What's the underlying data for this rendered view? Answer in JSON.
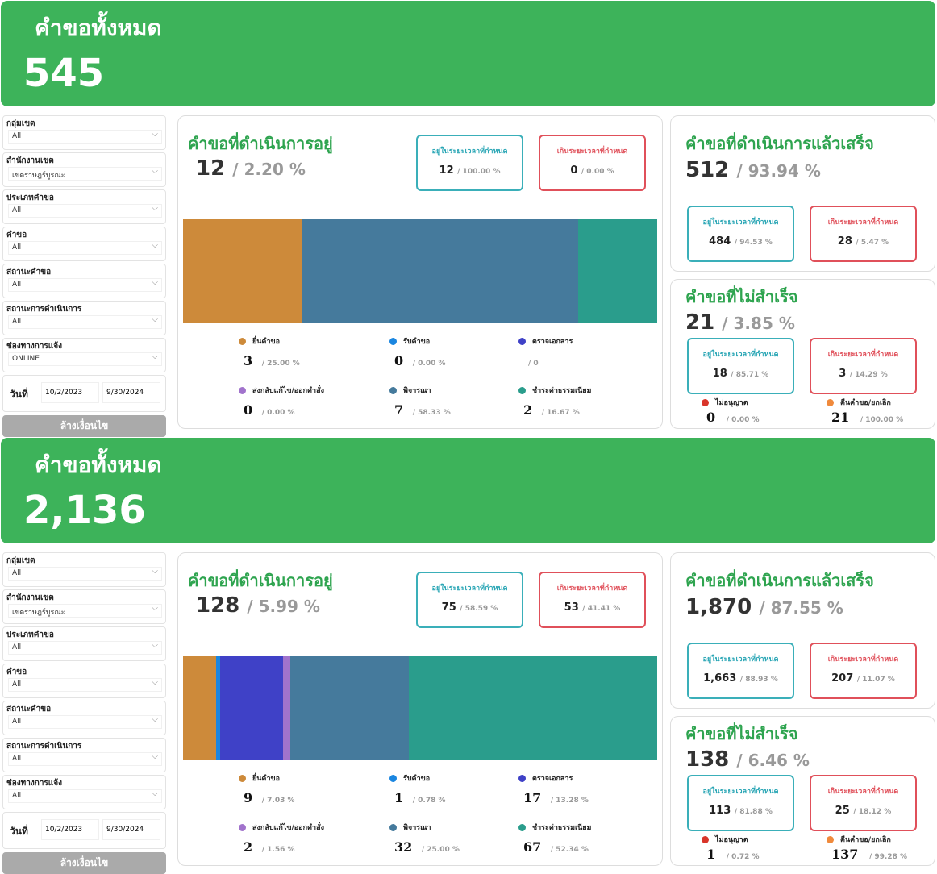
{
  "labels": {
    "header_title": "คำขอทั้งหมด",
    "filter_labels": [
      "กลุ่มเขต",
      "สำนักงานเขต",
      "ประเภทคำขอ",
      "คำขอ",
      "สถานะคำขอ",
      "สถานะการดำเนินการ",
      "ช่องทางการแจ้ง"
    ],
    "date_label": "วันที่",
    "clear_button": "ล้างเงื่อนไข",
    "in_progress_title": "คำขอที่ดำเนินการอยู่",
    "completed_title": "คำขอที่ดำเนินการแล้วเสร็จ",
    "failed_title": "คำขอที่ไม่สำเร็จ",
    "on_time": "อยู่ในระยะเวลาที่กำหนด",
    "overdue": "เกินระยะเวลาที่กำหนด",
    "stages": [
      "ยื่นคำขอ",
      "รับคำขอ",
      "ตรวจเอกสาร",
      "ส่งกลับแก้ไข/ออกคำสั่ง",
      "พิจารณา",
      "ชำระค่าธรรมเนียม"
    ],
    "failed_reasons": [
      "ไม่อนุญาต",
      "คืนคำขอ/ยกเลิก"
    ]
  },
  "colors": {
    "header": "#3db35a",
    "stages": [
      "#cd8a3a",
      "#1a86e0",
      "#3f41c7",
      "#a173cc",
      "#457a9c",
      "#2a9d8c"
    ],
    "failed_reasons": [
      "#d9352a",
      "#f08a3c"
    ]
  },
  "panels": [
    {
      "total": "545",
      "filters": [
        "All",
        "เขตราษฎร์บูรณะ",
        "All",
        "All",
        "All",
        "All",
        "ONLINE"
      ],
      "date_from": "10/2/2023",
      "date_to": "9/30/2024",
      "in_progress": {
        "count": "12",
        "pct": "/ 2.20 %",
        "on_time": "12",
        "on_time_pct": "/ 100.00 %",
        "overdue": "0",
        "overdue_pct": "/ 0.00 %"
      },
      "stages": [
        {
          "v": "3",
          "p": "/ 25.00 %",
          "n": 3
        },
        {
          "v": "0",
          "p": "/ 0.00 %",
          "n": 0
        },
        {
          "v": "",
          "p": "/ 0",
          "n": 0
        },
        {
          "v": "0",
          "p": "/ 0.00 %",
          "n": 0
        },
        {
          "v": "7",
          "p": "/ 58.33 %",
          "n": 7
        },
        {
          "v": "2",
          "p": "/ 16.67 %",
          "n": 2
        }
      ],
      "completed": {
        "count": "512",
        "pct": "/ 93.94 %",
        "on_time": "484",
        "on_time_pct": "/ 94.53 %",
        "overdue": "28",
        "overdue_pct": "/ 5.47 %"
      },
      "failed": {
        "count": "21",
        "pct": "/ 3.85 %",
        "on_time": "18",
        "on_time_pct": "/ 85.71 %",
        "overdue": "3",
        "overdue_pct": "/ 14.29 %",
        "reasons": [
          {
            "v": "0",
            "p": "/ 0.00 %"
          },
          {
            "v": "21",
            "p": "/ 100.00 %"
          }
        ]
      }
    },
    {
      "total": "2,136",
      "filters": [
        "All",
        "เขตราษฎร์บูรณะ",
        "All",
        "All",
        "All",
        "All",
        "All"
      ],
      "date_from": "10/2/2023",
      "date_to": "9/30/2024",
      "in_progress": {
        "count": "128",
        "pct": "/ 5.99 %",
        "on_time": "75",
        "on_time_pct": "/ 58.59 %",
        "overdue": "53",
        "overdue_pct": "/ 41.41 %"
      },
      "stages": [
        {
          "v": "9",
          "p": "/ 7.03 %",
          "n": 9
        },
        {
          "v": "1",
          "p": "/ 0.78 %",
          "n": 1
        },
        {
          "v": "17",
          "p": "/ 13.28 %",
          "n": 17
        },
        {
          "v": "2",
          "p": "/ 1.56 %",
          "n": 2
        },
        {
          "v": "32",
          "p": "/ 25.00 %",
          "n": 32
        },
        {
          "v": "67",
          "p": "/ 52.34 %",
          "n": 67
        }
      ],
      "completed": {
        "count": "1,870",
        "pct": "/ 87.55 %",
        "on_time": "1,663",
        "on_time_pct": "/ 88.93 %",
        "overdue": "207",
        "overdue_pct": "/ 11.07 %"
      },
      "failed": {
        "count": "138",
        "pct": "/ 6.46 %",
        "on_time": "113",
        "on_time_pct": "/ 81.88 %",
        "overdue": "25",
        "overdue_pct": "/ 18.12 %",
        "reasons": [
          {
            "v": "1",
            "p": "/ 0.72 %"
          },
          {
            "v": "137",
            "p": "/ 99.28 %"
          }
        ]
      }
    }
  ]
}
